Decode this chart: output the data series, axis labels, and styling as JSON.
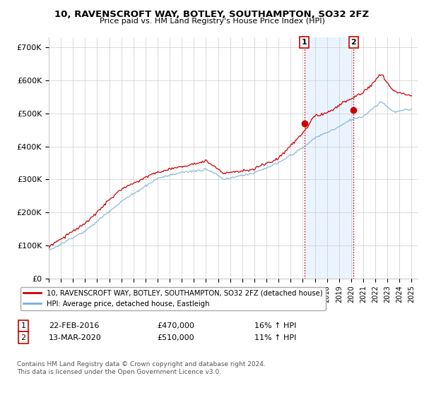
{
  "title": "10, RAVENSCROFT WAY, BOTLEY, SOUTHAMPTON, SO32 2FZ",
  "subtitle": "Price paid vs. HM Land Registry's House Price Index (HPI)",
  "ylabel_ticks": [
    "£0",
    "£100K",
    "£200K",
    "£300K",
    "£400K",
    "£500K",
    "£600K",
    "£700K"
  ],
  "ytick_values": [
    0,
    100000,
    200000,
    300000,
    400000,
    500000,
    600000,
    700000
  ],
  "ylim": [
    0,
    730000
  ],
  "xlim_start": 1995.0,
  "xlim_end": 2025.5,
  "marker1_x": 2016.14,
  "marker1_y": 470000,
  "marker2_x": 2020.2,
  "marker2_y": 510000,
  "marker1_label": "1",
  "marker2_label": "2",
  "vline1_x": 2016.14,
  "vline2_x": 2020.2,
  "legend_line1": "10, RAVENSCROFT WAY, BOTLEY, SOUTHAMPTON, SO32 2FZ (detached house)",
  "legend_line2": "HPI: Average price, detached house, Eastleigh",
  "annotation1": [
    "1",
    "22-FEB-2016",
    "£470,000",
    "16% ↑ HPI"
  ],
  "annotation2": [
    "2",
    "13-MAR-2020",
    "£510,000",
    "11% ↑ HPI"
  ],
  "footer": "Contains HM Land Registry data © Crown copyright and database right 2024.\nThis data is licensed under the Open Government Licence v3.0.",
  "red_color": "#cc0000",
  "blue_color": "#7ab0d4",
  "vline_color": "#cc0000",
  "bg_shade_color": "#ddeeff",
  "background_color": "#ffffff",
  "grid_color": "#cccccc",
  "title_fontsize": 9.5,
  "subtitle_fontsize": 8
}
